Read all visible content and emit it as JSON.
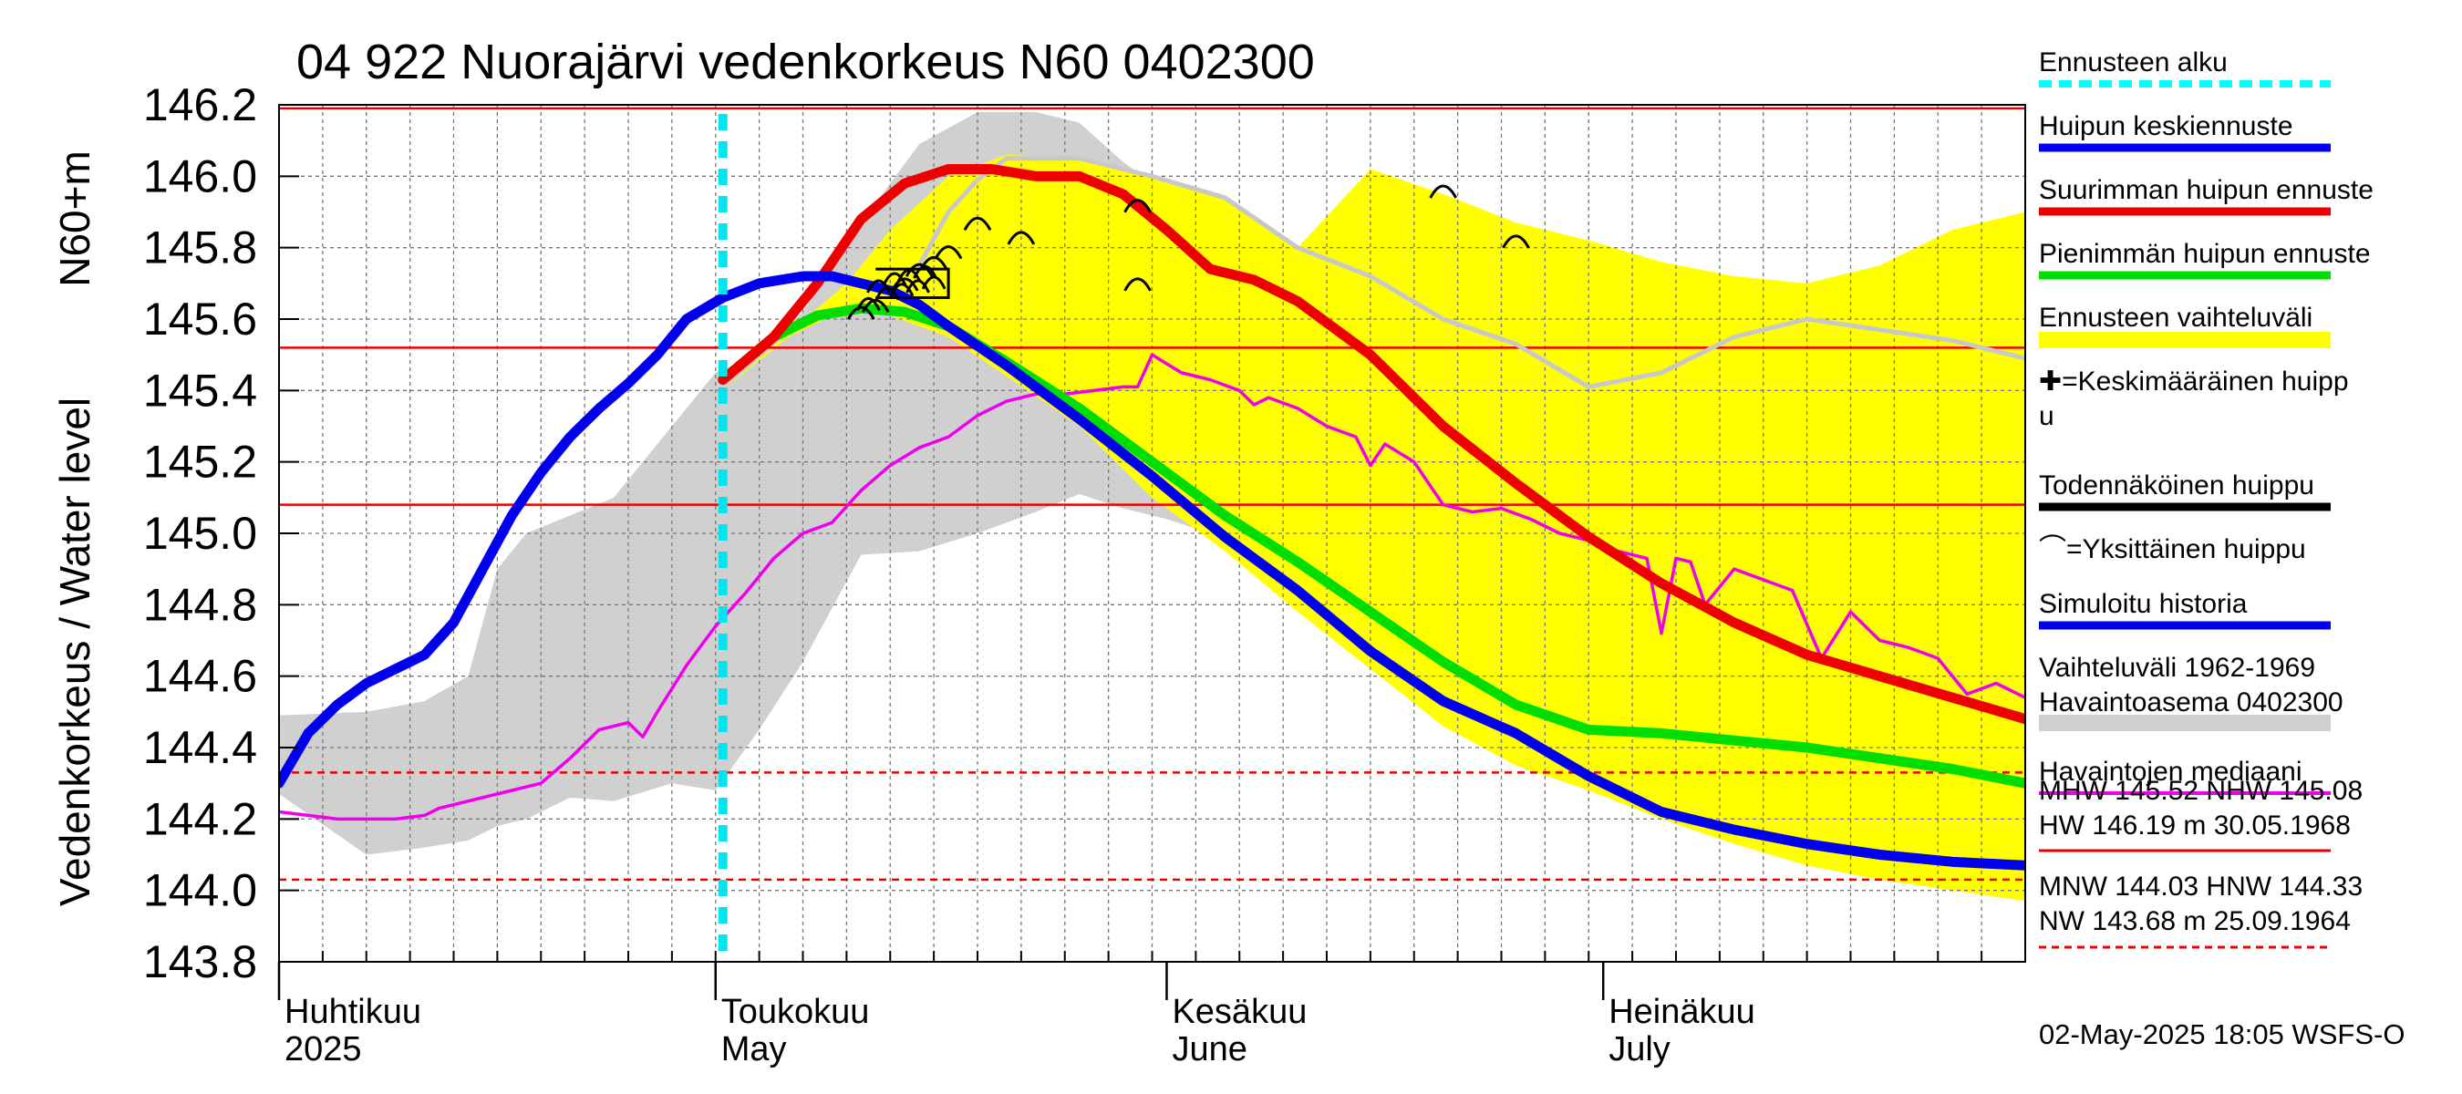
{
  "chart_data": {
    "type": "line",
    "title": "04 922 Nuorajärvi vedenkorkeus N60 0402300",
    "ylabel_outer": "Vedenkorkeus / Water level",
    "ylabel_inner": "N60+m",
    "ylim": [
      143.8,
      146.2
    ],
    "y_ticks": [
      "146.2",
      "146.0",
      "145.8",
      "145.6",
      "145.4",
      "145.2",
      "145.0",
      "144.8",
      "144.6",
      "144.4",
      "144.2",
      "144.0",
      "143.8"
    ],
    "x_range_days": [
      0,
      120
    ],
    "x_month_labels": [
      {
        "fi": "Huhtikuu",
        "en": "2025",
        "day": 0
      },
      {
        "fi": "Toukokuu",
        "en": "May",
        "day": 30
      },
      {
        "fi": "Kesäkuu",
        "en": "June",
        "day": 61
      },
      {
        "fi": "Heinäkuu",
        "en": "July",
        "day": 91
      }
    ],
    "forecast_start_day": 30.5,
    "reference_lines": {
      "solid_red": [
        146.19,
        145.52,
        145.08
      ],
      "dashed_red": [
        144.33,
        144.03
      ]
    },
    "series": [
      {
        "name": "Vaihteluväli 1962-1969 Havaintoasema 0402300",
        "kind": "band",
        "color": "#d0d0d0",
        "x": [
          0,
          6,
          10,
          13,
          15,
          17,
          20,
          23,
          27,
          30,
          33,
          36,
          40,
          44,
          48,
          52,
          55,
          58,
          61,
          64,
          67,
          70,
          75,
          80,
          85,
          90,
          95,
          100,
          105,
          110,
          115,
          120
        ],
        "upper": [
          144.49,
          144.5,
          144.53,
          144.6,
          144.9,
          145.0,
          145.05,
          145.1,
          145.3,
          145.45,
          145.5,
          145.62,
          145.87,
          146.09,
          146.18,
          146.18,
          146.15,
          146.04,
          145.95,
          145.92,
          145.88,
          145.8,
          145.7,
          145.56,
          145.47,
          145.41,
          145.48,
          145.57,
          145.57,
          145.55,
          145.51,
          145.48
        ],
        "lower": [
          144.27,
          144.1,
          144.12,
          144.14,
          144.18,
          144.2,
          144.26,
          144.25,
          144.3,
          144.28,
          144.45,
          144.64,
          144.94,
          144.95,
          145.0,
          145.06,
          145.11,
          145.07,
          145.04,
          145.0,
          144.9,
          144.8,
          144.62,
          144.5,
          144.4,
          144.35,
          144.3,
          144.18,
          144.1,
          144.07,
          144.07,
          144.06
        ]
      },
      {
        "name": "Ennusteen vaihteluväli",
        "kind": "band",
        "color": "#ffff00",
        "x": [
          30.5,
          35,
          39,
          42,
          46,
          50,
          55,
          60,
          65,
          70,
          75,
          80,
          85,
          90,
          95,
          100,
          105,
          110,
          115,
          120
        ],
        "upper": [
          145.4,
          145.56,
          145.7,
          145.85,
          146.0,
          146.06,
          146.05,
          146.0,
          145.94,
          145.8,
          146.02,
          145.95,
          145.87,
          145.82,
          145.76,
          145.72,
          145.7,
          145.75,
          145.85,
          145.9
        ],
        "lower": [
          145.4,
          145.55,
          145.63,
          145.61,
          145.55,
          145.44,
          145.3,
          145.1,
          144.95,
          144.78,
          144.62,
          144.46,
          144.35,
          144.28,
          144.2,
          144.13,
          144.07,
          144.03,
          144.0,
          143.97
        ]
      },
      {
        "name": "Havaintojen mediaani",
        "kind": "line",
        "color": "#ee00ee",
        "x": [
          0,
          2,
          4,
          6,
          8,
          10,
          11,
          12,
          14,
          16,
          18,
          20,
          22,
          24,
          25,
          26,
          28,
          30,
          32,
          34,
          36,
          38,
          40,
          42,
          44,
          46,
          48,
          50,
          52,
          54,
          56,
          58,
          59,
          60,
          62,
          64,
          66,
          67,
          68,
          70,
          72,
          74,
          75,
          76,
          78,
          80,
          82,
          84,
          86,
          88,
          90,
          92,
          94,
          95,
          96,
          97,
          98,
          100,
          102,
          104,
          106,
          108,
          110,
          112,
          114,
          116,
          118,
          120
        ],
        "y": [
          144.22,
          144.21,
          144.2,
          144.2,
          144.2,
          144.21,
          144.23,
          144.24,
          144.26,
          144.28,
          144.3,
          144.37,
          144.45,
          144.47,
          144.43,
          144.5,
          144.63,
          144.74,
          144.83,
          144.93,
          145.0,
          145.03,
          145.12,
          145.19,
          145.24,
          145.27,
          145.33,
          145.37,
          145.39,
          145.39,
          145.4,
          145.41,
          145.41,
          145.5,
          145.45,
          145.43,
          145.4,
          145.36,
          145.38,
          145.35,
          145.3,
          145.27,
          145.19,
          145.25,
          145.2,
          145.08,
          145.06,
          145.07,
          145.04,
          145.0,
          144.98,
          144.95,
          144.93,
          144.72,
          144.93,
          144.92,
          144.8,
          144.9,
          144.87,
          144.84,
          144.65,
          144.78,
          144.7,
          144.68,
          144.65,
          144.55,
          144.58,
          144.54
        ]
      },
      {
        "name": "Simuloitu historia",
        "kind": "line",
        "color": "#c8c8c8",
        "x": [
          44,
          46,
          48,
          50,
          55,
          60,
          65,
          70,
          75,
          80,
          85,
          90,
          95,
          100,
          105,
          110,
          115,
          120
        ],
        "y": [
          145.75,
          145.9,
          145.99,
          146.05,
          146.05,
          146.0,
          145.94,
          145.8,
          145.72,
          145.6,
          145.53,
          145.41,
          145.45,
          145.55,
          145.6,
          145.57,
          145.54,
          145.49
        ]
      },
      {
        "name": "Pienimmän huipun ennuste",
        "kind": "line",
        "color": "#00dd00",
        "x": [
          30.5,
          34,
          37,
          40,
          43,
          46,
          50,
          55,
          60,
          65,
          70,
          75,
          80,
          85,
          90,
          95,
          100,
          105,
          110,
          115,
          120
        ],
        "y": [
          145.43,
          145.55,
          145.61,
          145.63,
          145.62,
          145.58,
          145.48,
          145.35,
          145.2,
          145.05,
          144.92,
          144.78,
          144.64,
          144.52,
          144.45,
          144.44,
          144.42,
          144.4,
          144.37,
          144.34,
          144.3
        ]
      },
      {
        "name": "Suurimman huipun ennuste",
        "kind": "line",
        "color": "#ee0000",
        "x": [
          30.5,
          34,
          37,
          40,
          43,
          46,
          49,
          52,
          55,
          58,
          61,
          64,
          67,
          70,
          75,
          80,
          85,
          90,
          95,
          100,
          105,
          110,
          115,
          120
        ],
        "y": [
          145.43,
          145.55,
          145.7,
          145.88,
          145.98,
          146.02,
          146.02,
          146.0,
          146.0,
          145.95,
          145.85,
          145.74,
          145.71,
          145.65,
          145.5,
          145.3,
          145.14,
          144.99,
          144.86,
          144.75,
          144.66,
          144.6,
          144.54,
          144.48
        ]
      },
      {
        "name": "Huipun keskiennuste",
        "kind": "line",
        "color": "#0000ee",
        "x": [
          0,
          2,
          4,
          6,
          8,
          10,
          12,
          14,
          16,
          18,
          20,
          22,
          24,
          26,
          28,
          30.5,
          33,
          36,
          38,
          40,
          42,
          44,
          46,
          50,
          55,
          60,
          65,
          70,
          75,
          80,
          85,
          90,
          95,
          100,
          105,
          110,
          115,
          120
        ],
        "y": [
          144.3,
          144.44,
          144.52,
          144.58,
          144.62,
          144.66,
          144.75,
          144.9,
          145.05,
          145.17,
          145.27,
          145.35,
          145.42,
          145.5,
          145.6,
          145.66,
          145.7,
          145.72,
          145.72,
          145.7,
          145.68,
          145.64,
          145.58,
          145.47,
          145.32,
          145.16,
          144.99,
          144.84,
          144.67,
          144.53,
          144.44,
          144.32,
          144.22,
          144.17,
          144.13,
          144.1,
          144.08,
          144.07
        ]
      }
    ],
    "single_peaks": {
      "name": "Yksittäinen huippu",
      "x": [
        40,
        41,
        43,
        44,
        45,
        46,
        48,
        51,
        59,
        59,
        80,
        85
      ],
      "y": [
        145.62,
        145.64,
        145.7,
        145.74,
        145.76,
        145.79,
        145.87,
        145.83,
        145.92,
        145.7,
        145.96,
        145.82
      ]
    },
    "legend": [
      {
        "label": "Ennusteen alku",
        "color": "#00ffff",
        "style": "dashed"
      },
      {
        "label": "Huipun keskiennuste",
        "color": "#0000ee",
        "style": "line"
      },
      {
        "label": "Suurimman huipun ennuste",
        "color": "#ee0000",
        "style": "line"
      },
      {
        "label": "Pienimmän huipun ennuste",
        "color": "#00dd00",
        "style": "line"
      },
      {
        "label": "Ennusteen vaihteluväli",
        "color": "#ffff00",
        "style": "band"
      },
      {
        "label": "✚=Keskimääräinen huipp",
        "label2": "u",
        "style": "text"
      },
      {
        "label": "Todennäköinen huippu",
        "color": "#000000",
        "style": "line"
      },
      {
        "label": "⌒=Yksittäinen huippu",
        "style": "text"
      },
      {
        "label": "Simuloitu historia",
        "color": "#0000ee",
        "style": "line"
      },
      {
        "label": "Vaihteluväli 1962-1969",
        "label2": " Havaintoasema 0402300",
        "color": "#d0d0d0",
        "style": "band"
      },
      {
        "label": "Havaintojen mediaani",
        "color": "#ee00ee",
        "style": "thin"
      }
    ],
    "stats": {
      "line1": "MHW 145.52 NHW 145.08",
      "line2": "HW 146.19 m 30.05.1968",
      "line3": "MNW 144.03 HNW 144.33",
      "line4": "NW 143.68 m 25.09.1964"
    },
    "timestamp": "02-May-2025 18:05 WSFS-O"
  }
}
